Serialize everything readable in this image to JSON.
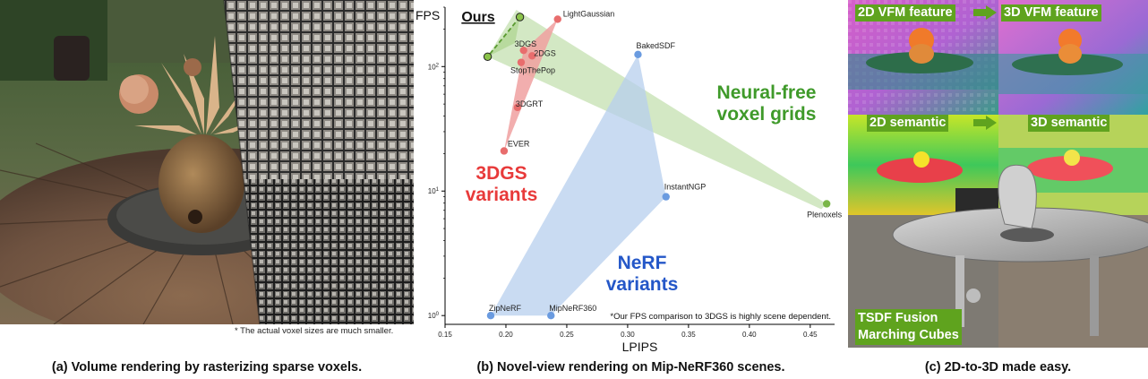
{
  "panel_a": {
    "footnote": "* The actual voxel sizes are much smaller.",
    "caption": "(a) Volume rendering by rasterizing sparse voxels."
  },
  "panel_b": {
    "caption": "(b) Novel-view rendering on Mip-NeRF360 scenes."
  },
  "panel_c": {
    "caption": "(c) 2D-to-3D made easy.",
    "labels": {
      "vfm_2d": "2D VFM feature",
      "vfm_3d": "3D VFM feature",
      "sem_2d": "2D semantic",
      "sem_3d": "3D semantic",
      "tsdf_line1": "TSDF Fusion",
      "tsdf_line2": "Marching Cubes"
    }
  },
  "chart_data": {
    "type": "scatter",
    "xlabel": "LPIPS",
    "ylabel": "FPS",
    "xscale": "linear",
    "yscale": "log",
    "xlim": [
      0.15,
      0.47
    ],
    "ylim": [
      0.85,
      300
    ],
    "xticks": [
      "0.15",
      "0.20",
      "0.25",
      "0.30",
      "0.35",
      "0.40",
      "0.45"
    ],
    "yticks": [
      "10^0",
      "10^1",
      "10^2"
    ],
    "grid": false,
    "footnote": "*Our FPS comparison to 3DGS is highly scene dependent.",
    "groups": [
      {
        "name": "Ours",
        "color": "#7ab648",
        "fill": "#b5d89a",
        "points": [
          {
            "x": 0.2115,
            "y": 250,
            "label": "",
            "marker": "ring"
          },
          {
            "x": 0.185,
            "y": 120,
            "label": "",
            "marker": "ring"
          }
        ]
      },
      {
        "name": "3DGS\nvariants",
        "color": "#e86d6d",
        "fill": "#f0a0a0",
        "points": [
          {
            "x": 0.2425,
            "y": 240,
            "label": "LightGaussian"
          },
          {
            "x": 0.2145,
            "y": 135,
            "label": "3DGS"
          },
          {
            "x": 0.2215,
            "y": 122,
            "label": "2DGS"
          },
          {
            "x": 0.2125,
            "y": 108,
            "label": "StopThePop"
          },
          {
            "x": 0.2095,
            "y": 47,
            "label": "3DGRT"
          },
          {
            "x": 0.1985,
            "y": 21,
            "label": "EVER"
          }
        ]
      },
      {
        "name": "NeRF\nvariants",
        "color": "#6a9be0",
        "fill": "#b7cfee",
        "points": [
          {
            "x": 0.3085,
            "y": 125,
            "label": "BakedSDF"
          },
          {
            "x": 0.3315,
            "y": 9,
            "label": "InstantNGP"
          },
          {
            "x": 0.237,
            "y": 1.0,
            "label": "MipNeRF360"
          },
          {
            "x": 0.1875,
            "y": 1.0,
            "label": "ZipNeRF"
          }
        ]
      },
      {
        "name": "Neural-free\nvoxel grids",
        "color": "#7ab648",
        "fill": "#c4e0b0",
        "points": [
          {
            "x": 0.4635,
            "y": 7.9,
            "label": "Plenoxels"
          }
        ]
      }
    ]
  }
}
